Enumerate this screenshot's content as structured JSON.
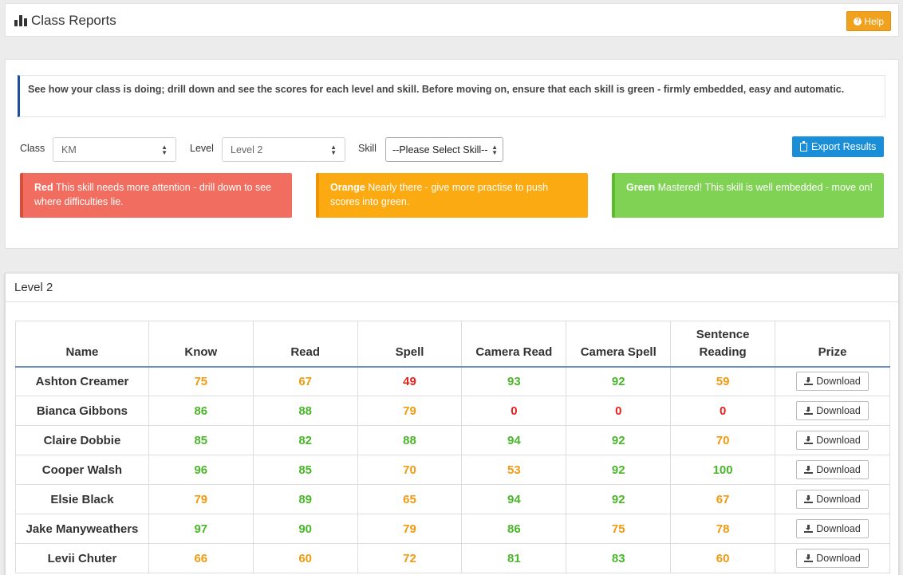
{
  "header": {
    "title": "Class Reports",
    "help_label": "Help"
  },
  "intro_text": "See how your class is doing; drill down and see the scores for each level and skill. Before moving on, ensure that each skill is green - firmly embedded, easy and automatic.",
  "filters": {
    "class_label": "Class",
    "class_value": "KM",
    "level_label": "Level",
    "level_value": "Level 2",
    "skill_label": "Skill",
    "skill_value": "--Please Select Skill--",
    "export_label": "Export Results"
  },
  "legend": [
    {
      "key": "Red",
      "text": "This skill needs more attention - drill down to see where difficulties lie."
    },
    {
      "key": "Orange",
      "text": "Nearly there - give more practise to push scores into green."
    },
    {
      "key": "Green",
      "text": "Mastered! This skill is well embedded - move on!"
    }
  ],
  "results": {
    "title": "Level 2",
    "columns": [
      "Name",
      "Know",
      "Read",
      "Spell",
      "Camera Read",
      "Camera Spell",
      "Sentence Reading",
      "Prize"
    ],
    "download_label": "Download",
    "rows": [
      {
        "name": "Ashton Creamer",
        "scores": [
          75,
          67,
          49,
          93,
          92,
          59
        ]
      },
      {
        "name": "Bianca Gibbons",
        "scores": [
          86,
          88,
          79,
          0,
          0,
          0
        ]
      },
      {
        "name": "Claire Dobbie",
        "scores": [
          85,
          82,
          88,
          94,
          92,
          70
        ]
      },
      {
        "name": "Cooper Walsh",
        "scores": [
          96,
          85,
          70,
          53,
          92,
          100
        ]
      },
      {
        "name": "Elsie Black",
        "scores": [
          79,
          89,
          65,
          94,
          92,
          67
        ]
      },
      {
        "name": "Jake Manyweathers",
        "scores": [
          97,
          90,
          79,
          86,
          75,
          78
        ]
      },
      {
        "name": "Levii Chuter",
        "scores": [
          66,
          60,
          72,
          81,
          83,
          60
        ]
      }
    ]
  },
  "colors": {
    "red": "#e8201a",
    "orange": "#f19a0f",
    "green": "#4ab62a",
    "accent_blue": "#1a8ed6",
    "help_orange": "#f0a21e"
  }
}
